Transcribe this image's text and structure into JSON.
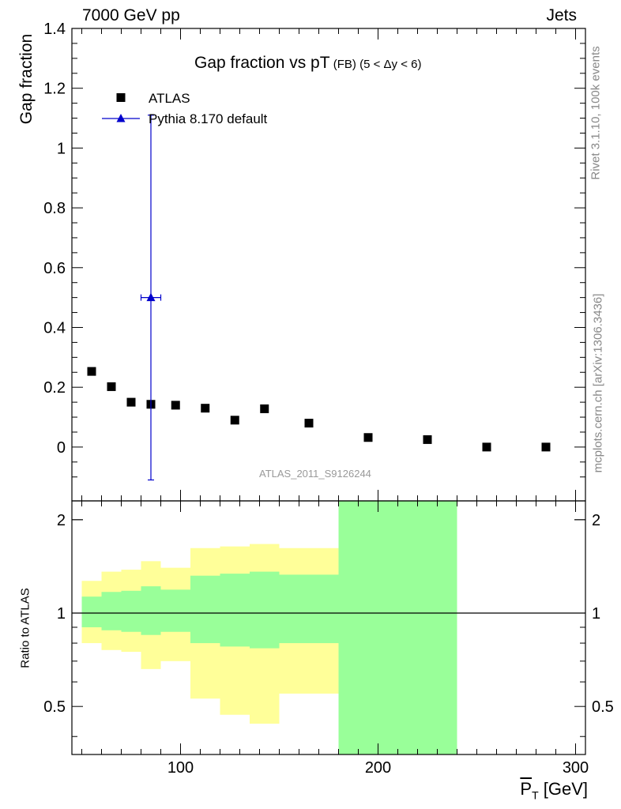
{
  "header": {
    "left": "7000 GeV pp",
    "right": "Jets"
  },
  "side_labels": {
    "rivet": "Rivet 3.1.10,  100k events",
    "mcplots": "mcplots.cern.ch [arXiv:1306.3436]"
  },
  "plot_title": {
    "main": "Gap fraction vs pT",
    "sub": "(FB)",
    "range": "(5 < Δy < 6)"
  },
  "ref_label": "ATLAS_2011_S9126244",
  "xlabel": {
    "symbol": "P",
    "subscript": "T",
    "unit": "[GeV]"
  },
  "chart_data": [
    {
      "type": "scatter",
      "ylabel": "Gap fraction",
      "xlim": [
        45,
        305
      ],
      "ylim": [
        -0.18,
        1.4
      ],
      "y_ticks": [
        0,
        0.2,
        0.4,
        0.6,
        0.8,
        1,
        1.2,
        1.4
      ],
      "y_tick_labels": [
        "0",
        "0.2",
        "0.4",
        "0.6",
        "0.8",
        "1",
        "1.2",
        "1.4"
      ],
      "legend_position": "top-left",
      "series": [
        {
          "name": "ATLAS",
          "marker": "square",
          "color": "#000000",
          "x": [
            55,
            65,
            75,
            85,
            97.5,
            112.5,
            127.5,
            142.5,
            165,
            195,
            225,
            255,
            285
          ],
          "y": [
            0.253,
            0.202,
            0.15,
            0.143,
            0.14,
            0.13,
            0.09,
            0.128,
            0.08,
            0.032,
            0.025,
            0.0,
            0.0
          ]
        },
        {
          "name": "Pythia 8.170 default",
          "marker": "triangle",
          "color": "#0000cc",
          "x": [
            85
          ],
          "y": [
            0.5
          ],
          "x_err": [
            5
          ],
          "y_err_low": [
            0.61
          ],
          "y_err_high": [
            0.61
          ]
        }
      ]
    },
    {
      "type": "area",
      "ylabel": "Ratio to ATLAS",
      "xlim": [
        45,
        305
      ],
      "ylim": [
        0.35,
        2.3
      ],
      "y_ticks": [
        0.5,
        1,
        2
      ],
      "y_tick_labels": [
        "0.5",
        "1",
        "2"
      ],
      "x_ticks": [
        100,
        200,
        300
      ],
      "x_tick_labels": [
        "100",
        "200",
        "300"
      ],
      "reference_line": 1,
      "bands": {
        "edges": [
          50,
          60,
          70,
          80,
          90,
          105,
          120,
          135,
          150,
          180,
          240
        ],
        "outer_color": "#ffff99",
        "inner_color": "#99ff99",
        "outer_low": [
          0.8,
          0.76,
          0.75,
          0.66,
          0.7,
          0.53,
          0.47,
          0.44,
          0.55,
          0.35
        ],
        "outer_high": [
          1.27,
          1.36,
          1.38,
          1.47,
          1.4,
          1.62,
          1.64,
          1.67,
          1.62,
          2.3
        ],
        "inner_low": [
          0.9,
          0.88,
          0.87,
          0.85,
          0.87,
          0.8,
          0.78,
          0.77,
          0.8,
          0.35
        ],
        "inner_high": [
          1.13,
          1.17,
          1.18,
          1.22,
          1.19,
          1.32,
          1.34,
          1.36,
          1.33,
          2.3
        ]
      }
    }
  ]
}
